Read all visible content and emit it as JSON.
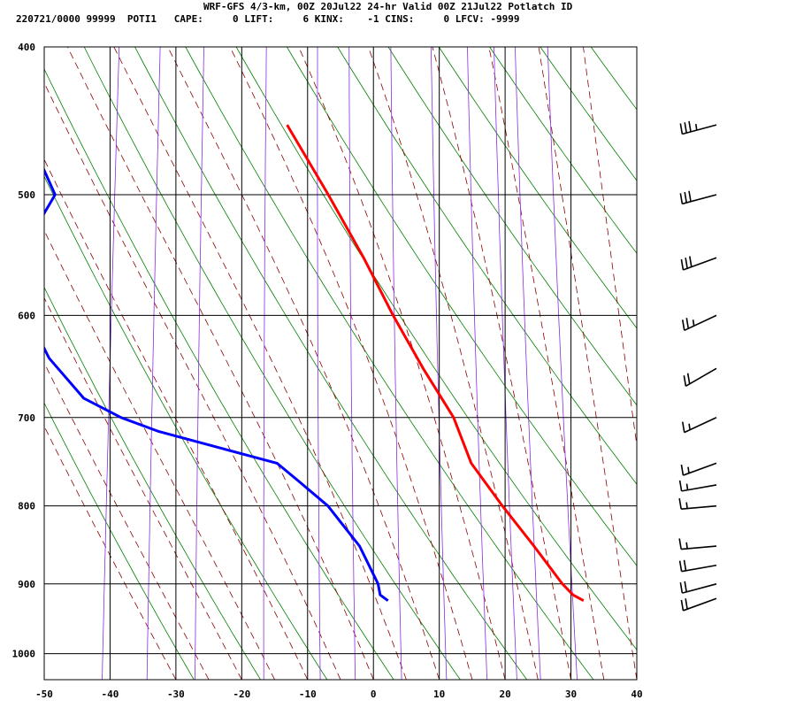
{
  "header": {
    "line1": "WRF-GFS 4/3-km, 00Z 20Jul22 24-hr Valid 00Z 21Jul22 Potlatch ID",
    "line2": "220721/0000 99999  POTI1   CAPE:     0 LIFT:     6 KINX:    -1 CINS:     0 LFCV: -9999"
  },
  "chart_data": {
    "type": "line",
    "chart_kind": "skew-T log-P sounding",
    "x_axis": {
      "range": [
        -50,
        40
      ],
      "ticks": [
        -50,
        -40,
        -30,
        -20,
        -10,
        0,
        10,
        20,
        30,
        40
      ],
      "units": "deg C (skewed)"
    },
    "y_axis": {
      "range": [
        1040,
        400
      ],
      "scale": "log",
      "ticks": [
        400,
        500,
        600,
        700,
        800,
        900,
        1000
      ],
      "units": "hPa"
    },
    "grid": true,
    "series": [
      {
        "key": "temperature",
        "color": "#ff0000",
        "points": [
          {
            "p": 923,
            "t": 30.5
          },
          {
            "p": 915,
            "t": 28.8
          },
          {
            "p": 900,
            "t": 27.0
          },
          {
            "p": 850,
            "t": 22.0
          },
          {
            "p": 800,
            "t": 16.5
          },
          {
            "p": 750,
            "t": 11.0
          },
          {
            "p": 700,
            "t": 7.5
          },
          {
            "p": 650,
            "t": 2.0
          },
          {
            "p": 600,
            "t": -3.5
          },
          {
            "p": 550,
            "t": -9.0
          },
          {
            "p": 500,
            "t": -15.5
          },
          {
            "p": 450,
            "t": -23.0
          }
        ]
      },
      {
        "key": "dewpoint",
        "color": "#0000ff",
        "points": [
          {
            "p": 923,
            "t": 0.8
          },
          {
            "p": 915,
            "t": -0.5
          },
          {
            "p": 900,
            "t": -1.0
          },
          {
            "p": 850,
            "t": -4.5
          },
          {
            "p": 800,
            "t": -10.0
          },
          {
            "p": 770,
            "t": -15.0
          },
          {
            "p": 750,
            "t": -18.5
          },
          {
            "p": 715,
            "t": -37.0
          },
          {
            "p": 700,
            "t": -43.0
          },
          {
            "p": 680,
            "t": -49.0
          },
          {
            "p": 640,
            "t": -55.0
          },
          {
            "p": 600,
            "t": -59.0
          },
          {
            "p": 550,
            "t": -61.5
          },
          {
            "p": 500,
            "t": -57.0
          },
          {
            "p": 450,
            "t": -63.0
          }
        ]
      }
    ],
    "background_lines": {
      "dry_adiabats_color": "#008000",
      "moist_adiabats_color": "#8b0000",
      "mixing_ratio_color": "#8a2be2"
    },
    "wind_barbs": [
      {
        "p": 920,
        "spd_kt": 20,
        "dir_deg": 250
      },
      {
        "p": 900,
        "spd_kt": 20,
        "dir_deg": 255
      },
      {
        "p": 875,
        "spd_kt": 20,
        "dir_deg": 260
      },
      {
        "p": 850,
        "spd_kt": 15,
        "dir_deg": 265
      },
      {
        "p": 800,
        "spd_kt": 15,
        "dir_deg": 265
      },
      {
        "p": 775,
        "spd_kt": 15,
        "dir_deg": 260
      },
      {
        "p": 750,
        "spd_kt": 15,
        "dir_deg": 250
      },
      {
        "p": 700,
        "spd_kt": 15,
        "dir_deg": 245
      },
      {
        "p": 650,
        "spd_kt": 20,
        "dir_deg": 240
      },
      {
        "p": 600,
        "spd_kt": 25,
        "dir_deg": 245
      },
      {
        "p": 550,
        "spd_kt": 30,
        "dir_deg": 250
      },
      {
        "p": 500,
        "spd_kt": 30,
        "dir_deg": 255
      },
      {
        "p": 450,
        "spd_kt": 35,
        "dir_deg": 255
      }
    ]
  }
}
